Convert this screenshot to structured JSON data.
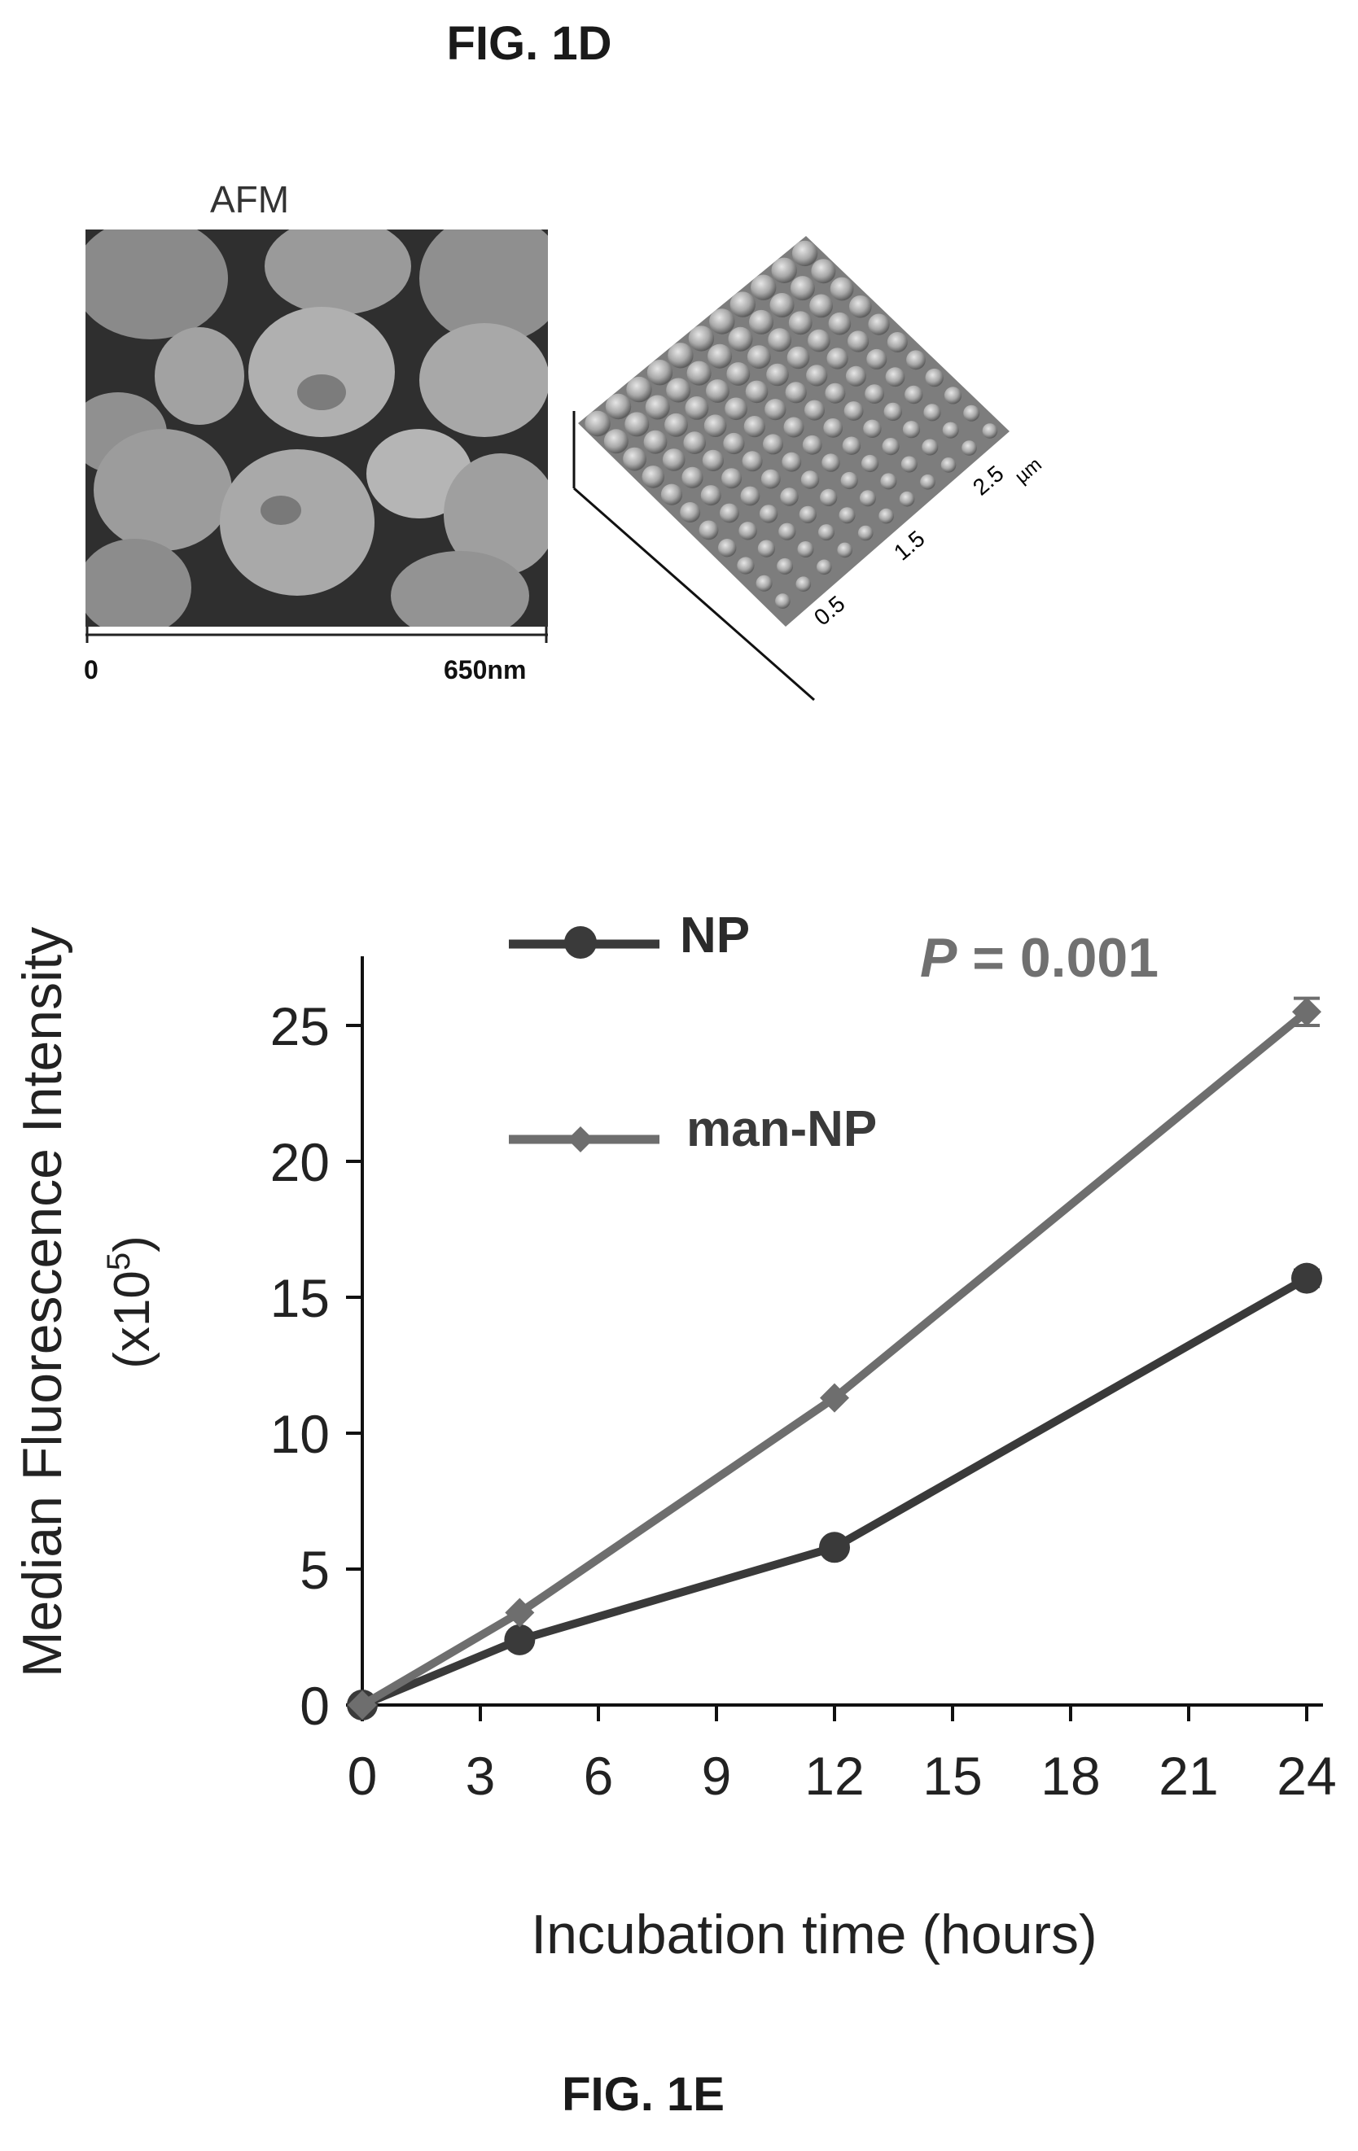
{
  "figures": {
    "fig1d_title": "FIG. 1D",
    "fig1e_title": "FIG. 1E"
  },
  "afm": {
    "label": "AFM",
    "scale_start": "0",
    "scale_end": "650nm",
    "axis_ticks": [
      "0.5",
      "1.5",
      "2.5"
    ],
    "axis_unit": "µm"
  },
  "chart_data": {
    "type": "line",
    "title": "",
    "xlabel": "Incubation time (hours)",
    "ylabel": "Median Fluorescence Intensity",
    "ylabel_line2": "(x10",
    "ylabel_exp": "5",
    "ylabel_close": ")",
    "x_ticks": [
      "0",
      "3",
      "6",
      "9",
      "12",
      "15",
      "18",
      "21",
      "24"
    ],
    "y_ticks": [
      "0",
      "5",
      "10",
      "15",
      "20",
      "25"
    ],
    "xlim": [
      0,
      24
    ],
    "ylim": [
      0,
      25
    ],
    "grid": false,
    "legend_position": "top-left",
    "annotation_p": "P",
    "annotation_rest": " = 0.001",
    "series": [
      {
        "name": "NP",
        "marker": "circle",
        "color": "#3a3a3a",
        "x": [
          0,
          4,
          12,
          24
        ],
        "y": [
          0,
          2.4,
          5.8,
          15.7
        ],
        "error": [
          0,
          0,
          0,
          0.3
        ]
      },
      {
        "name": "man-NP",
        "marker": "diamond",
        "color": "#6e6e6e",
        "x": [
          0,
          4,
          12,
          24
        ],
        "y": [
          0,
          3.4,
          11.3,
          25.5
        ],
        "error": [
          0,
          0,
          0,
          0.5
        ]
      }
    ]
  }
}
